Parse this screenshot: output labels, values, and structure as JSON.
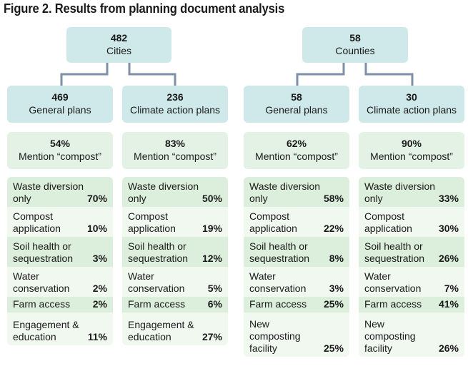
{
  "title": "Figure 2. Results from planning document analysis",
  "cities": {
    "count": "482",
    "label": "Cities",
    "general": {
      "count": "469",
      "label": "General plans",
      "mention_pct": "54%",
      "mention_label": "Mention “compost”"
    },
    "climate": {
      "count": "236",
      "label": "Climate action plans",
      "mention_pct": "83%",
      "mention_label": "Mention “compost”"
    }
  },
  "counties": {
    "count": "58",
    "label": "Counties",
    "general": {
      "count": "58",
      "label": "General plans",
      "mention_pct": "62%",
      "mention_label": "Mention “compost”"
    },
    "climate": {
      "count": "30",
      "label": "Climate action plans",
      "mention_pct": "90%",
      "mention_label": "Mention “compost”"
    }
  },
  "lists": {
    "cities_general": [
      {
        "label": "Waste diversion only",
        "value": "70%"
      },
      {
        "label": "Compost application",
        "value": "10%"
      },
      {
        "label": "Soil health or sequestration",
        "value": "3%"
      },
      {
        "label": "Water conservation",
        "value": "2%"
      },
      {
        "label": "Farm access",
        "value": "2%"
      },
      {
        "label": "Engagement & education",
        "value": "11%"
      }
    ],
    "cities_climate": [
      {
        "label": "Waste diversion only",
        "value": "50%"
      },
      {
        "label": "Compost application",
        "value": "19%"
      },
      {
        "label": "Soil health or sequestration",
        "value": "12%"
      },
      {
        "label": "Water conservation",
        "value": "5%"
      },
      {
        "label": "Farm access",
        "value": "6%"
      },
      {
        "label": "Engagement & education",
        "value": "27%"
      }
    ],
    "counties_general": [
      {
        "label": "Waste diversion only",
        "value": "58%"
      },
      {
        "label": "Compost application",
        "value": "22%"
      },
      {
        "label": "Soil health or sequestration",
        "value": "8%"
      },
      {
        "label": "Water conservation",
        "value": "3%"
      },
      {
        "label": "Farm access",
        "value": "25%"
      },
      {
        "label": "New composting facility",
        "value": "25%"
      }
    ],
    "counties_climate": [
      {
        "label": "Waste diversion only",
        "value": "33%"
      },
      {
        "label": "Compost application",
        "value": "30%"
      },
      {
        "label": "Soil health or sequestration",
        "value": "26%"
      },
      {
        "label": "Water conservation",
        "value": "7%"
      },
      {
        "label": "Farm access",
        "value": "41%"
      },
      {
        "label": "New composting facility",
        "value": "26%"
      }
    ]
  },
  "colors": {
    "top_box": "#cfe9ea",
    "pct_box": "#e3f2e4",
    "row_dark": "#dcefdc",
    "row_light": "#f0f8ef",
    "connector": "#7f8fa6"
  }
}
